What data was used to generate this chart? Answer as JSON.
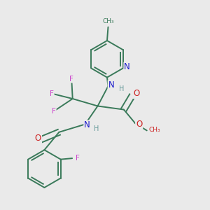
{
  "background_color": "#eaeaea",
  "bond_color": "#3a7a5a",
  "bond_width": 1.4,
  "label_colors": {
    "F": "#cc44cc",
    "N": "#1a1acc",
    "O": "#cc2222",
    "H": "#669999",
    "C": "#3a7a5a"
  },
  "figsize": [
    3.0,
    3.0
  ],
  "dpi": 100
}
